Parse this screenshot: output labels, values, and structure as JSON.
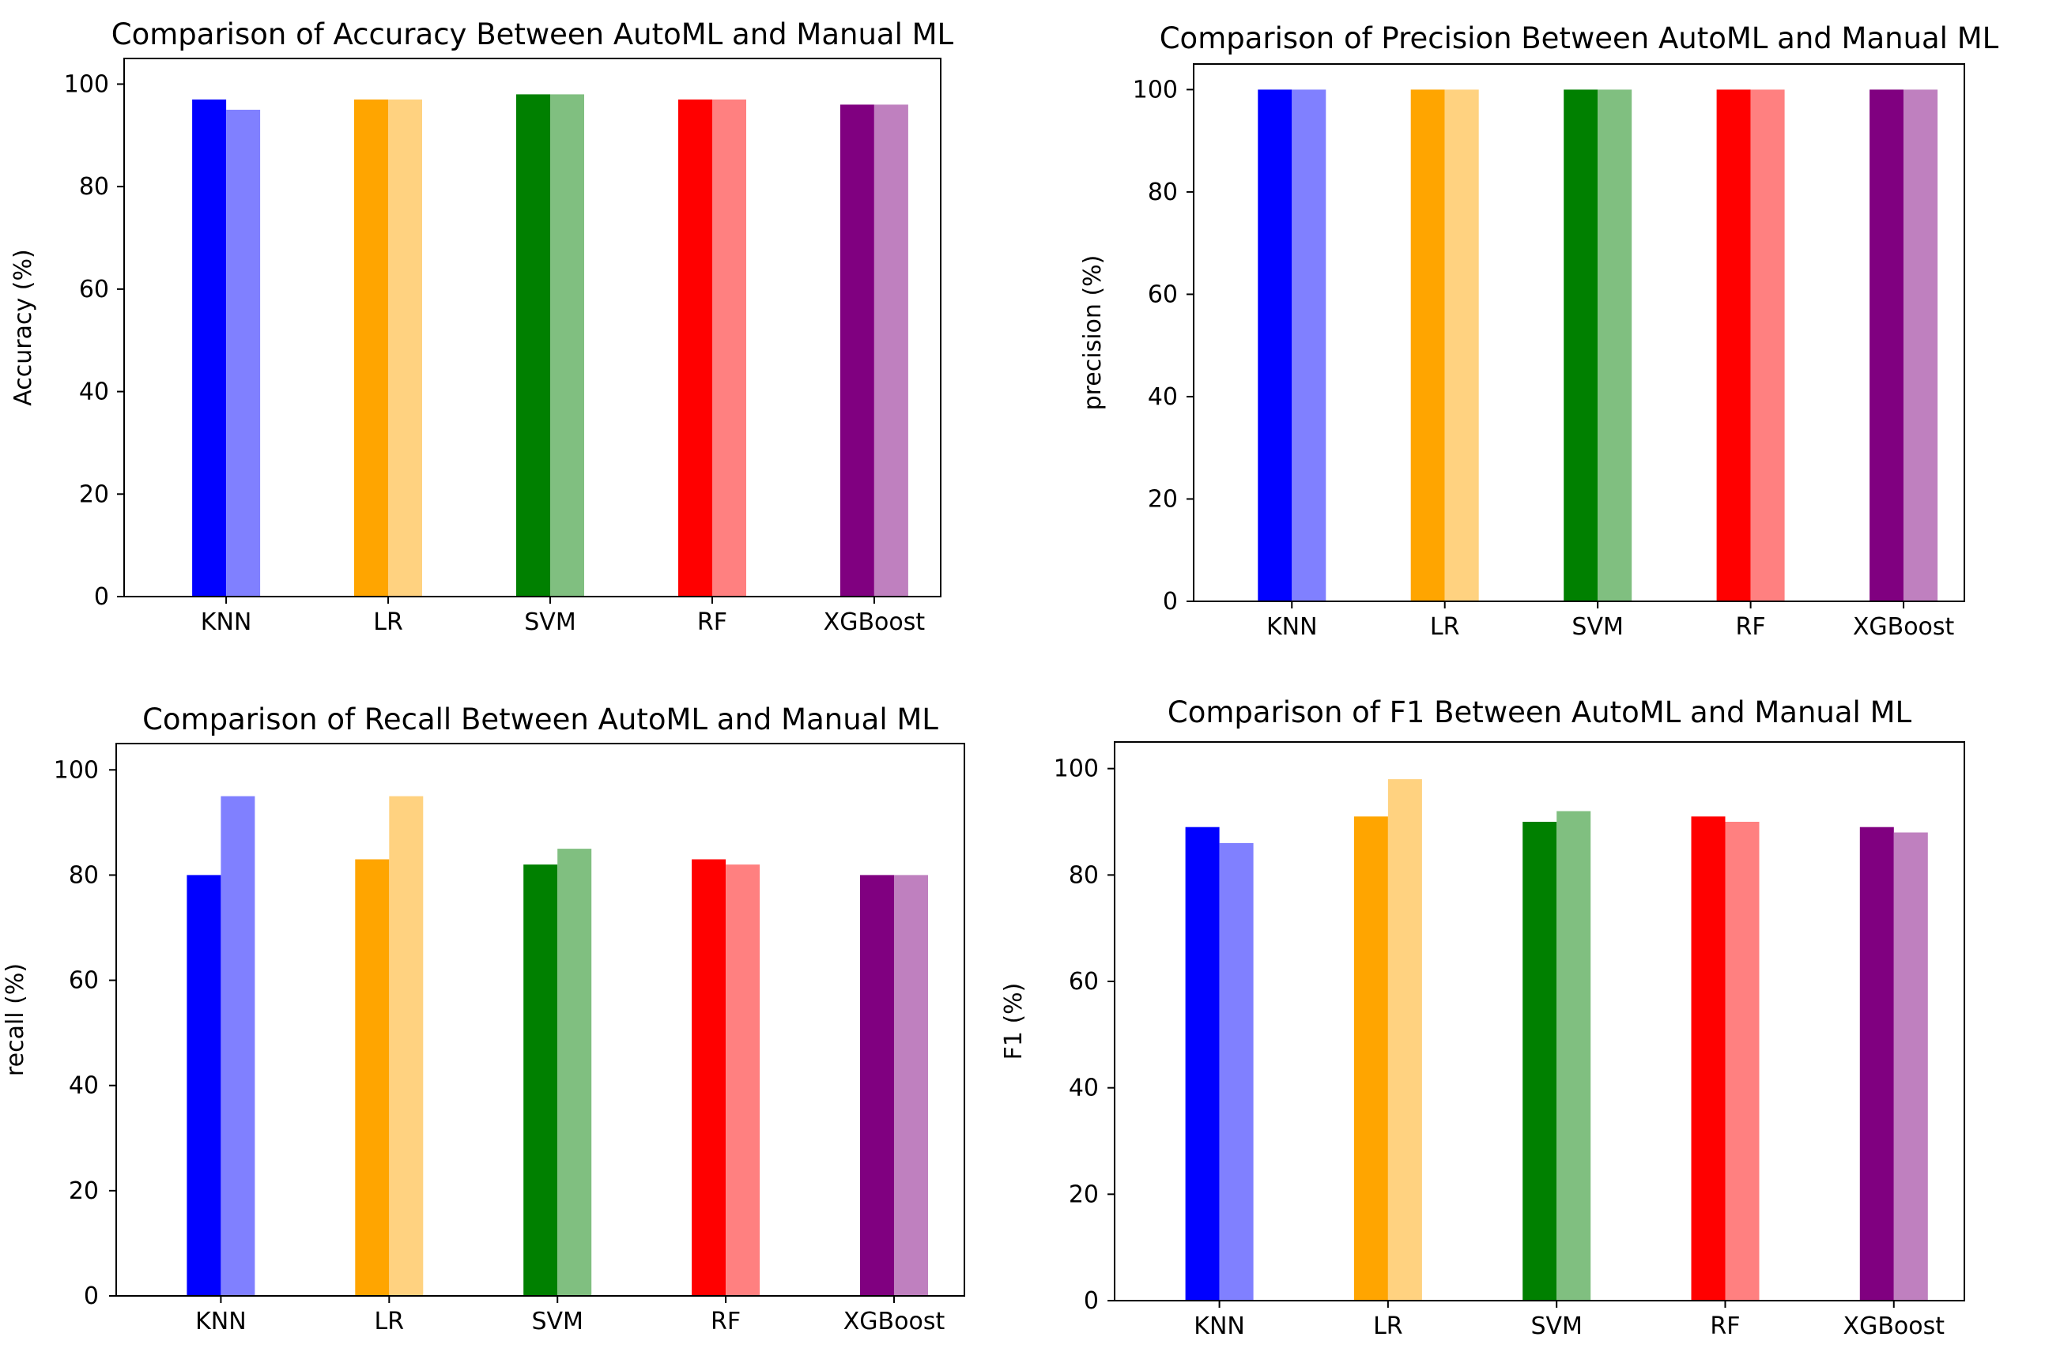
{
  "chart_data": [
    {
      "type": "bar",
      "title": "Comparison of Accuracy Between AutoML and Manual ML",
      "xlabel": "",
      "ylabel": "Accuracy (%)",
      "ylim": [
        0,
        100
      ],
      "yticks": [
        "0",
        "20",
        "40",
        "60",
        "80",
        "100"
      ],
      "categories": [
        "KNN",
        "LR",
        "SVM",
        "RF",
        "XGBoost"
      ],
      "colors": [
        "#0000ff",
        "#ffa500",
        "#008000",
        "#ff0000",
        "#800080"
      ],
      "light_colors": [
        "#8080ff",
        "#ffd280",
        "#80bf80",
        "#ff8080",
        "#bf80bf"
      ],
      "series": [
        {
          "name": "AutoML",
          "values": [
            97,
            97,
            98,
            97,
            96
          ]
        },
        {
          "name": "Manual ML",
          "values": [
            95,
            97,
            98,
            97,
            96
          ]
        }
      ],
      "legend": "none",
      "grid": false
    },
    {
      "type": "bar",
      "title": "Comparison of Precision Between AutoML and Manual ML",
      "xlabel": "",
      "ylabel": "precision (%)",
      "ylim": [
        0,
        100
      ],
      "yticks": [
        "0",
        "20",
        "40",
        "60",
        "80",
        "100"
      ],
      "categories": [
        "KNN",
        "LR",
        "SVM",
        "RF",
        "XGBoost"
      ],
      "colors": [
        "#0000ff",
        "#ffa500",
        "#008000",
        "#ff0000",
        "#800080"
      ],
      "light_colors": [
        "#8080ff",
        "#ffd280",
        "#80bf80",
        "#ff8080",
        "#bf80bf"
      ],
      "series": [
        {
          "name": "AutoML",
          "values": [
            100,
            100,
            100,
            100,
            100
          ]
        },
        {
          "name": "Manual ML",
          "values": [
            100,
            100,
            100,
            100,
            100
          ]
        }
      ],
      "legend": "none",
      "grid": false
    },
    {
      "type": "bar",
      "title": "Comparison of Recall Between AutoML and Manual ML",
      "xlabel": "",
      "ylabel": "recall (%)",
      "ylim": [
        0,
        100
      ],
      "yticks": [
        "0",
        "20",
        "40",
        "60",
        "80",
        "100"
      ],
      "categories": [
        "KNN",
        "LR",
        "SVM",
        "RF",
        "XGBoost"
      ],
      "colors": [
        "#0000ff",
        "#ffa500",
        "#008000",
        "#ff0000",
        "#800080"
      ],
      "light_colors": [
        "#8080ff",
        "#ffd280",
        "#80bf80",
        "#ff8080",
        "#bf80bf"
      ],
      "series": [
        {
          "name": "AutoML",
          "values": [
            80,
            83,
            82,
            83,
            80
          ]
        },
        {
          "name": "Manual ML",
          "values": [
            95,
            95,
            85,
            82,
            80
          ]
        }
      ],
      "legend": "none",
      "grid": false
    },
    {
      "type": "bar",
      "title": "Comparison of F1 Between AutoML and Manual ML",
      "xlabel": "",
      "ylabel": "F1 (%)",
      "ylim": [
        0,
        100
      ],
      "yticks": [
        "0",
        "20",
        "40",
        "60",
        "80",
        "100"
      ],
      "categories": [
        "KNN",
        "LR",
        "SVM",
        "RF",
        "XGBoost"
      ],
      "colors": [
        "#0000ff",
        "#ffa500",
        "#008000",
        "#ff0000",
        "#800080"
      ],
      "light_colors": [
        "#8080ff",
        "#ffd280",
        "#80bf80",
        "#ff8080",
        "#bf80bf"
      ],
      "series": [
        {
          "name": "AutoML",
          "values": [
            89,
            91,
            90,
            91,
            89
          ]
        },
        {
          "name": "Manual ML",
          "values": [
            86,
            98,
            92,
            90,
            88
          ]
        }
      ],
      "legend": "none",
      "grid": false
    }
  ]
}
